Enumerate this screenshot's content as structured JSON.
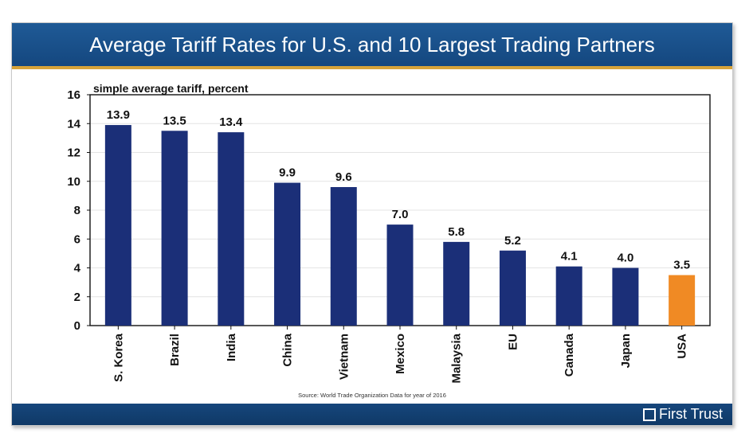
{
  "title": "Average Tariff Rates for U.S. and 10 Largest Trading Partners",
  "source": "Source: World Trade Organization Data for year of 2016",
  "brand": "First Trust",
  "colors": {
    "bar": "#1b2f78",
    "highlight": "#f08a24",
    "title_bar": "#1a5089",
    "accent": "#d7a33a"
  },
  "chart_data": {
    "type": "bar",
    "ylabel": "simple average tariff, percent",
    "ylim": [
      0,
      16
    ],
    "yticks": [
      0,
      2,
      4,
      6,
      8,
      10,
      12,
      14,
      16
    ],
    "categories": [
      "S. Korea",
      "Brazil",
      "India",
      "China",
      "Vietnam",
      "Mexico",
      "Malaysia",
      "EU",
      "Canada",
      "Japan",
      "USA"
    ],
    "values": [
      13.9,
      13.5,
      13.4,
      9.9,
      9.6,
      7.0,
      5.8,
      5.2,
      4.1,
      4.0,
      3.5
    ],
    "data_labels": [
      "13.9",
      "13.5",
      "13.4",
      "9.9",
      "9.6",
      "7.0",
      "5.8",
      "5.2",
      "4.1",
      "4.0",
      "3.5"
    ],
    "highlight_category": "USA",
    "grid": true
  }
}
